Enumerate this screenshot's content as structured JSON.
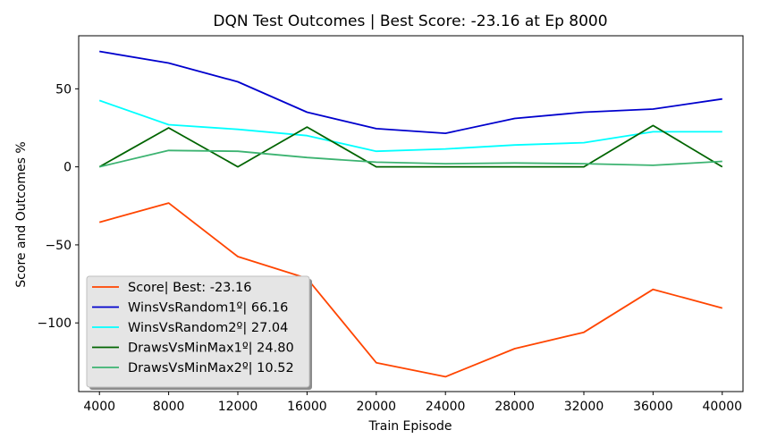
{
  "chart_data": {
    "type": "line",
    "title": "DQN Test Outcomes | Best Score: -23.16 at Ep 8000",
    "xlabel": "Train Episode",
    "ylabel": "Score and Outcomes %",
    "x": [
      4000,
      8000,
      12000,
      16000,
      20000,
      24000,
      28000,
      32000,
      36000,
      40000
    ],
    "xlim": [
      2800,
      41200
    ],
    "ylim": [
      -144,
      84
    ],
    "yticks": [
      -100,
      -50,
      0,
      50
    ],
    "ytick_labels": [
      "−100",
      "−50",
      "0",
      "50"
    ],
    "grid": false,
    "legend": {
      "placement": "lower-left"
    },
    "series": [
      {
        "name": "Score| Best: -23.16",
        "color": "#ff4500",
        "values": [
          -35.5,
          -23.2,
          -57.5,
          -71.5,
          -125.5,
          -134.5,
          -116.5,
          -106,
          -78.5,
          -90.5
        ]
      },
      {
        "name": "WinsVsRandom1º| 66.16",
        "color": "#0000cd",
        "values": [
          74,
          66.5,
          54.5,
          35,
          24.5,
          21.5,
          31,
          35,
          37,
          43.5
        ]
      },
      {
        "name": "WinsVsRandom2º| 27.04",
        "color": "#00ffff",
        "values": [
          42.5,
          27,
          24,
          20,
          10,
          11.5,
          14,
          15.5,
          22.5,
          22.5
        ]
      },
      {
        "name": "DrawsVsMinMax1º| 24.80",
        "color": "#006400",
        "values": [
          0,
          25,
          0,
          25.5,
          0,
          0,
          0,
          0,
          26.5,
          0
        ]
      },
      {
        "name": "DrawsVsMinMax2º| 10.52",
        "color": "#3cb371",
        "values": [
          0,
          10.5,
          10,
          6,
          3,
          2,
          2.5,
          2,
          1,
          3.5
        ]
      }
    ]
  }
}
